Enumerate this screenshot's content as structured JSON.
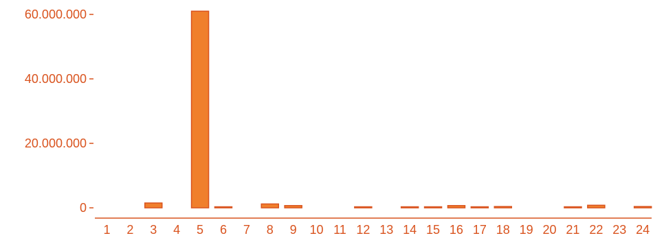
{
  "colors": {
    "bar_fill": "#f07f2c",
    "bar_stroke": "#d9531e",
    "axis": "#d9531e",
    "text": "#d9531e"
  },
  "chart_data": {
    "type": "bar",
    "title": "",
    "xlabel": "",
    "ylabel": "",
    "categories": [
      "1",
      "2",
      "3",
      "4",
      "5",
      "6",
      "7",
      "8",
      "9",
      "10",
      "11",
      "12",
      "13",
      "14",
      "15",
      "16",
      "17",
      "18",
      "19",
      "20",
      "21",
      "22",
      "23",
      "24"
    ],
    "values": [
      0,
      0,
      1500000,
      0,
      61000000,
      100000,
      0,
      1200000,
      700000,
      0,
      0,
      150000,
      0,
      200000,
      200000,
      700000,
      300000,
      400000,
      0,
      0,
      100000,
      800000,
      0,
      400000
    ],
    "ylim": [
      0,
      65000000
    ],
    "y_ticks": [
      0,
      20000000,
      40000000,
      60000000
    ],
    "y_tick_labels": [
      "0",
      "20.000.000",
      "40.000.000",
      "60.000.000"
    ],
    "grid": false,
    "legend": "none"
  }
}
